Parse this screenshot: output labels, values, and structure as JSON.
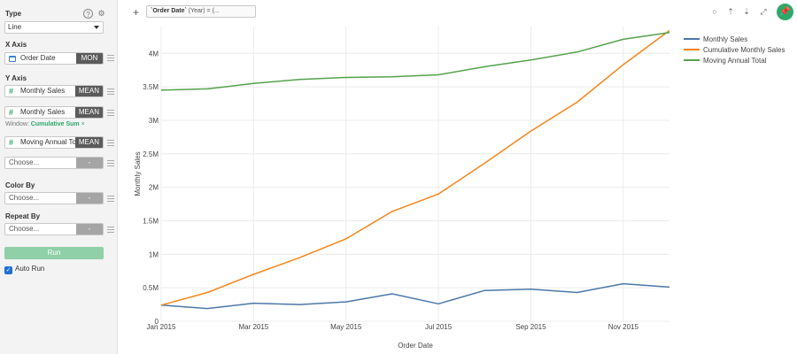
{
  "sidebar": {
    "type_label": "Type",
    "type_value": "Line",
    "x_axis_label": "X Axis",
    "x_field": {
      "name": "Order Date",
      "agg": "MON",
      "icon": "calendar-icon"
    },
    "y_axis_label": "Y Axis",
    "y_fields": [
      {
        "name": "Monthly Sales",
        "agg": "MEAN",
        "icon": "hash-icon"
      },
      {
        "name": "Monthly Sales",
        "agg": "MEAN",
        "icon": "hash-icon"
      },
      {
        "name": "Moving Annual Total",
        "agg": "MEAN",
        "icon": "hash-icon"
      }
    ],
    "window_label": "Window:",
    "window_value": "Cumulative Sum",
    "window_remove": "×",
    "choose_placeholder": "Choose...",
    "choose_agg": "-",
    "color_by_label": "Color By",
    "repeat_by_label": "Repeat By",
    "run_label": "Run",
    "auto_run_label": "Auto Run",
    "auto_run_checked": true
  },
  "topbar": {
    "add_symbol": "+",
    "filter_field": "`Order Date`",
    "filter_rest": " (Year) = (..."
  },
  "colors": {
    "monthly": "#4c78a8",
    "cumulative": "#f58518",
    "moving": "#54a24b",
    "accent": "#2ea86a"
  },
  "chart_data": {
    "type": "line",
    "xlabel": "Order Date",
    "ylabel": "Monthly Sales",
    "x": [
      "2015-01",
      "2015-02",
      "2015-03",
      "2015-04",
      "2015-05",
      "2015-06",
      "2015-07",
      "2015-08",
      "2015-09",
      "2015-10",
      "2015-11",
      "2015-12"
    ],
    "x_tick_labels": [
      "Jan 2015",
      "Mar 2015",
      "May 2015",
      "Jul 2015",
      "Sep 2015",
      "Nov 2015"
    ],
    "y_tick_labels": [
      "0",
      "0.5M",
      "1M",
      "1.5M",
      "2M",
      "2.5M",
      "3M",
      "3.5M",
      "4M"
    ],
    "ylim": [
      0,
      4400000
    ],
    "grid": true,
    "legend_position": "top-right",
    "series": [
      {
        "name": "Monthly Sales",
        "values": [
          240000,
          190000,
          270000,
          250000,
          290000,
          410000,
          260000,
          460000,
          480000,
          430000,
          560000,
          510000
        ]
      },
      {
        "name": "Cumulative Monthly Sales",
        "values": [
          240000,
          430000,
          700000,
          950000,
          1230000,
          1640000,
          1900000,
          2360000,
          2840000,
          3270000,
          3830000,
          4340000
        ]
      },
      {
        "name": "Moving Annual Total",
        "values": [
          3450000,
          3470000,
          3550000,
          3610000,
          3640000,
          3650000,
          3680000,
          3800000,
          3900000,
          4020000,
          4210000,
          4310000
        ]
      }
    ]
  }
}
